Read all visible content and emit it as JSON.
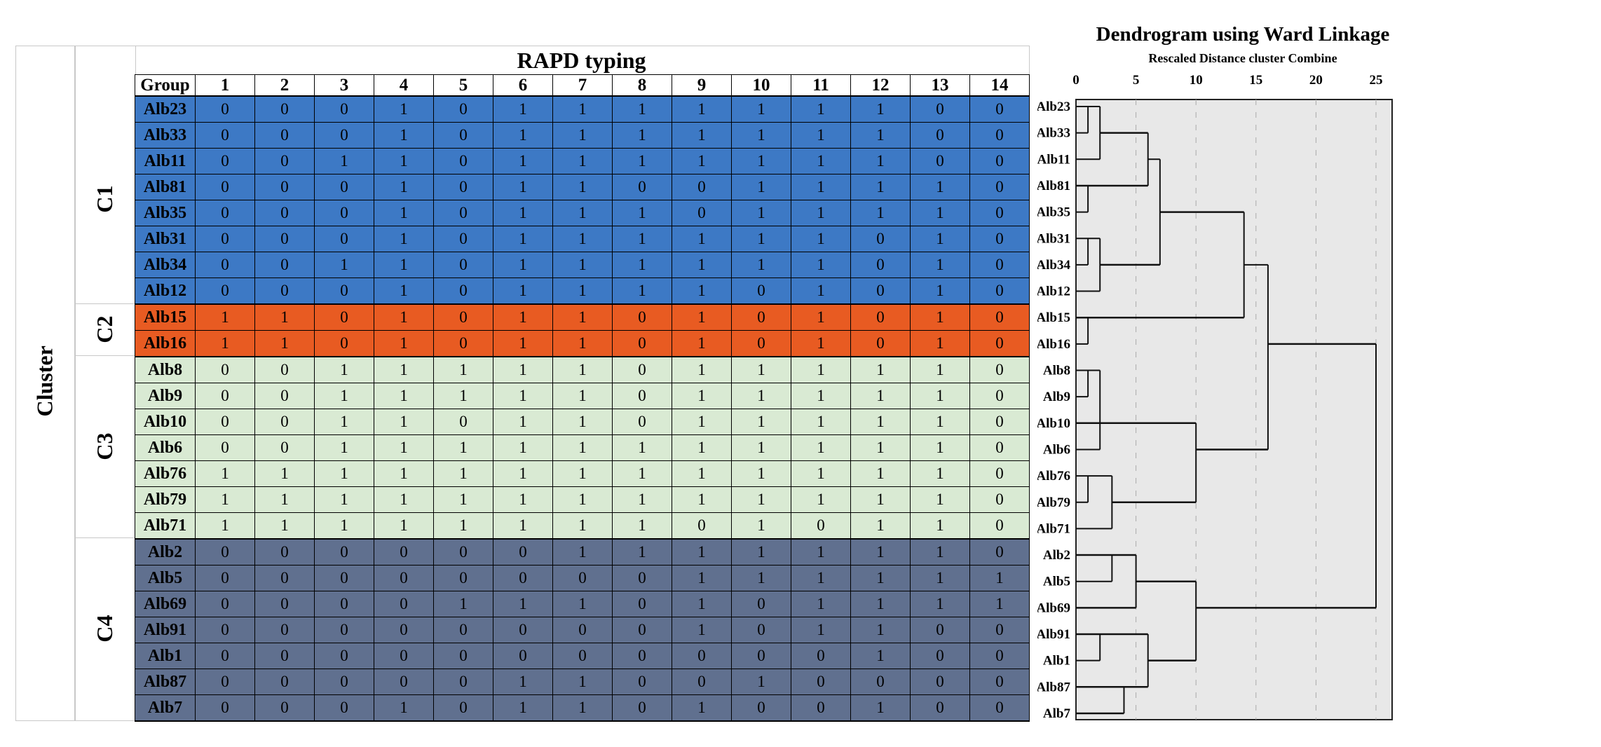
{
  "table": {
    "title": "RAPD typing",
    "side_label": "Cluster",
    "group_header": "Group",
    "columns": [
      "1",
      "2",
      "3",
      "4",
      "5",
      "6",
      "7",
      "8",
      "9",
      "10",
      "11",
      "12",
      "13",
      "14"
    ],
    "colors": {
      "C1": "#3d79c5",
      "C2": "#e85b22",
      "C3": "#d9ead3",
      "C4": "#60708f"
    },
    "clusters": [
      {
        "label": "C1",
        "rows": [
          {
            "id": "Alb23",
            "values": [
              0,
              0,
              0,
              1,
              0,
              1,
              1,
              1,
              1,
              1,
              1,
              1,
              0,
              0
            ]
          },
          {
            "id": "Alb33",
            "values": [
              0,
              0,
              0,
              1,
              0,
              1,
              1,
              1,
              1,
              1,
              1,
              1,
              0,
              0
            ]
          },
          {
            "id": "Alb11",
            "values": [
              0,
              0,
              1,
              1,
              0,
              1,
              1,
              1,
              1,
              1,
              1,
              1,
              0,
              0
            ]
          },
          {
            "id": "Alb81",
            "values": [
              0,
              0,
              0,
              1,
              0,
              1,
              1,
              0,
              0,
              1,
              1,
              1,
              1,
              0
            ]
          },
          {
            "id": "Alb35",
            "values": [
              0,
              0,
              0,
              1,
              0,
              1,
              1,
              1,
              0,
              1,
              1,
              1,
              1,
              0
            ]
          },
          {
            "id": "Alb31",
            "values": [
              0,
              0,
              0,
              1,
              0,
              1,
              1,
              1,
              1,
              1,
              1,
              0,
              1,
              0
            ]
          },
          {
            "id": "Alb34",
            "values": [
              0,
              0,
              1,
              1,
              0,
              1,
              1,
              1,
              1,
              1,
              1,
              0,
              1,
              0
            ]
          },
          {
            "id": "Alb12",
            "values": [
              0,
              0,
              0,
              1,
              0,
              1,
              1,
              1,
              1,
              0,
              1,
              0,
              1,
              0
            ]
          }
        ]
      },
      {
        "label": "C2",
        "rows": [
          {
            "id": "Alb15",
            "values": [
              1,
              1,
              0,
              1,
              0,
              1,
              1,
              0,
              1,
              0,
              1,
              0,
              1,
              0
            ]
          },
          {
            "id": "Alb16",
            "values": [
              1,
              1,
              0,
              1,
              0,
              1,
              1,
              0,
              1,
              0,
              1,
              0,
              1,
              0
            ]
          }
        ]
      },
      {
        "label": "C3",
        "rows": [
          {
            "id": "Alb8",
            "values": [
              0,
              0,
              1,
              1,
              1,
              1,
              1,
              0,
              1,
              1,
              1,
              1,
              1,
              0
            ]
          },
          {
            "id": "Alb9",
            "values": [
              0,
              0,
              1,
              1,
              1,
              1,
              1,
              0,
              1,
              1,
              1,
              1,
              1,
              0
            ]
          },
          {
            "id": "Alb10",
            "values": [
              0,
              0,
              1,
              1,
              0,
              1,
              1,
              0,
              1,
              1,
              1,
              1,
              1,
              0
            ]
          },
          {
            "id": "Alb6",
            "values": [
              0,
              0,
              1,
              1,
              1,
              1,
              1,
              1,
              1,
              1,
              1,
              1,
              1,
              0
            ]
          },
          {
            "id": "Alb76",
            "values": [
              1,
              1,
              1,
              1,
              1,
              1,
              1,
              1,
              1,
              1,
              1,
              1,
              1,
              0
            ]
          },
          {
            "id": "Alb79",
            "values": [
              1,
              1,
              1,
              1,
              1,
              1,
              1,
              1,
              1,
              1,
              1,
              1,
              1,
              0
            ]
          },
          {
            "id": "Alb71",
            "values": [
              1,
              1,
              1,
              1,
              1,
              1,
              1,
              1,
              0,
              1,
              0,
              1,
              1,
              0
            ]
          }
        ]
      },
      {
        "label": "C4",
        "rows": [
          {
            "id": "Alb2",
            "values": [
              0,
              0,
              0,
              0,
              0,
              0,
              1,
              1,
              1,
              1,
              1,
              1,
              1,
              0
            ]
          },
          {
            "id": "Alb5",
            "values": [
              0,
              0,
              0,
              0,
              0,
              0,
              0,
              0,
              1,
              1,
              1,
              1,
              1,
              1
            ]
          },
          {
            "id": "Alb69",
            "values": [
              0,
              0,
              0,
              0,
              1,
              1,
              1,
              0,
              1,
              0,
              1,
              1,
              1,
              1
            ]
          },
          {
            "id": "Alb91",
            "values": [
              0,
              0,
              0,
              0,
              0,
              0,
              0,
              0,
              1,
              0,
              1,
              1,
              0,
              0
            ]
          },
          {
            "id": "Alb1",
            "values": [
              0,
              0,
              0,
              0,
              0,
              0,
              0,
              0,
              0,
              0,
              0,
              1,
              0,
              0
            ]
          },
          {
            "id": "Alb87",
            "values": [
              0,
              0,
              0,
              0,
              0,
              1,
              1,
              0,
              0,
              1,
              0,
              0,
              0,
              0
            ]
          },
          {
            "id": "Alb7",
            "values": [
              0,
              0,
              0,
              1,
              0,
              1,
              1,
              0,
              1,
              0,
              0,
              1,
              0,
              0
            ]
          }
        ]
      }
    ]
  },
  "chart_data": {
    "type": "dendrogram",
    "title": "Dendrogram using Ward Linkage",
    "xlabel": "Rescaled Distance cluster Combine",
    "xlim": [
      0,
      25
    ],
    "xticks": [
      "0",
      "5",
      "10",
      "15",
      "20",
      "25"
    ],
    "grid": true,
    "background": "#e8e8e8",
    "leaves": [
      "Alb23",
      "Alb33",
      "Alb11",
      "Alb81",
      "Alb35",
      "Alb31",
      "Alb34",
      "Alb12",
      "Alb15",
      "Alb16",
      "Alb8",
      "Alb9",
      "Alb10",
      "Alb6",
      "Alb76",
      "Alb79",
      "Alb71",
      "Alb2",
      "Alb5",
      "Alb69",
      "Alb91",
      "Alb1",
      "Alb87",
      "Alb7"
    ],
    "horizontal_segments": [
      [
        0,
        0,
        2
      ],
      [
        1,
        0,
        1
      ],
      [
        2,
        0,
        2
      ],
      [
        1,
        2,
        6
      ],
      [
        3,
        0,
        6
      ],
      [
        4,
        0,
        1
      ],
      [
        2,
        6,
        7
      ],
      [
        4,
        7,
        14
      ],
      [
        5,
        0,
        2
      ],
      [
        6,
        0,
        1
      ],
      [
        7,
        0,
        2
      ],
      [
        6,
        2,
        7
      ],
      [
        8,
        0,
        14
      ],
      [
        9,
        0,
        1
      ],
      [
        6,
        14,
        16
      ],
      [
        9,
        16,
        25
      ],
      [
        10,
        0,
        2
      ],
      [
        11,
        0,
        1
      ],
      [
        12,
        0,
        10
      ],
      [
        13,
        0,
        2
      ],
      [
        13,
        10,
        16
      ],
      [
        14,
        0,
        3
      ],
      [
        15,
        0,
        1
      ],
      [
        15,
        3,
        10
      ],
      [
        16,
        0,
        3
      ],
      [
        17,
        0,
        5
      ],
      [
        18,
        0,
        3
      ],
      [
        18,
        5,
        10
      ],
      [
        19,
        0,
        5
      ],
      [
        19,
        10,
        25
      ],
      [
        20,
        0,
        6
      ],
      [
        21,
        0,
        2
      ],
      [
        21,
        6,
        10
      ],
      [
        22,
        0,
        6
      ],
      [
        23,
        0,
        4
      ]
    ],
    "vertical_segments": [
      [
        1,
        0,
        1
      ],
      [
        2,
        0,
        2
      ],
      [
        6,
        1,
        3
      ],
      [
        1,
        3,
        4
      ],
      [
        7,
        2,
        6
      ],
      [
        1,
        5,
        6
      ],
      [
        2,
        5,
        7
      ],
      [
        14,
        4,
        8
      ],
      [
        1,
        8,
        9
      ],
      [
        16,
        6,
        13
      ],
      [
        25,
        9,
        19
      ],
      [
        1,
        10,
        11
      ],
      [
        2,
        10,
        13
      ],
      [
        10,
        12,
        15
      ],
      [
        1,
        14,
        15
      ],
      [
        3,
        14,
        16
      ],
      [
        3,
        17,
        18
      ],
      [
        5,
        17,
        19
      ],
      [
        10,
        18,
        21
      ],
      [
        2,
        20,
        21
      ],
      [
        6,
        20,
        22
      ],
      [
        4,
        22,
        23
      ]
    ]
  }
}
